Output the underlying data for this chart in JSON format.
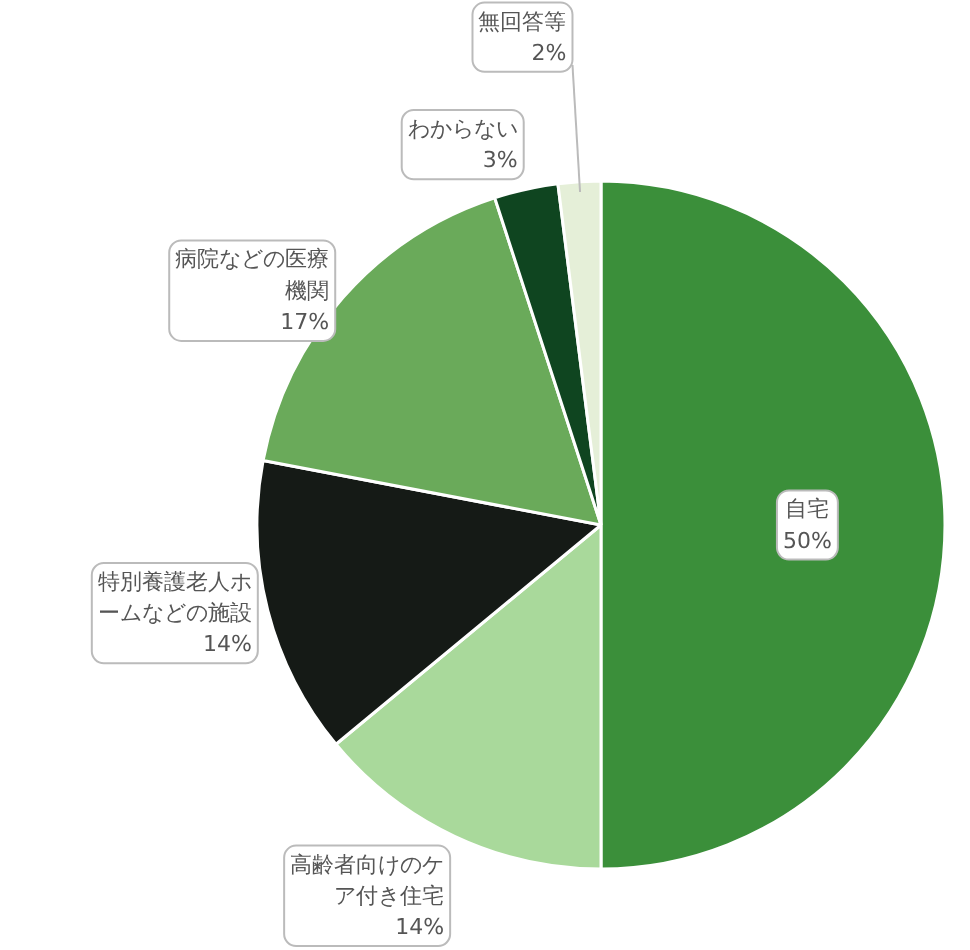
{
  "chart_data": {
    "type": "pie",
    "categories": [
      "自宅",
      "高齢者向けのケア付き住宅",
      "特別養護老人ホームなどの施設",
      "病院などの医療機関",
      "わからない",
      "無回答等"
    ],
    "values": [
      50,
      14,
      14,
      17,
      3,
      2
    ],
    "value_labels": [
      "50%",
      "14%",
      "14%",
      "17%",
      "3%",
      "2%"
    ],
    "colors": [
      "#3b8f3a",
      "#a9d99b",
      "#151a16",
      "#6aaa5a",
      "#0f4520",
      "#e5efd8"
    ]
  }
}
